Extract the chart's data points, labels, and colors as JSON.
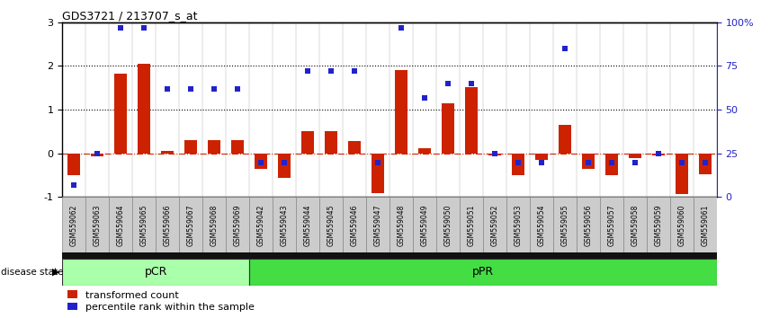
{
  "title": "GDS3721 / 213707_s_at",
  "samples": [
    "GSM559062",
    "GSM559063",
    "GSM559064",
    "GSM559065",
    "GSM559066",
    "GSM559067",
    "GSM559068",
    "GSM559069",
    "GSM559042",
    "GSM559043",
    "GSM559044",
    "GSM559045",
    "GSM559046",
    "GSM559047",
    "GSM559048",
    "GSM559049",
    "GSM559050",
    "GSM559051",
    "GSM559052",
    "GSM559053",
    "GSM559054",
    "GSM559055",
    "GSM559056",
    "GSM559057",
    "GSM559058",
    "GSM559059",
    "GSM559060",
    "GSM559061"
  ],
  "transformed_count": [
    -0.5,
    -0.07,
    1.82,
    2.05,
    0.06,
    0.3,
    0.3,
    0.3,
    -0.35,
    -0.55,
    0.5,
    0.5,
    0.28,
    -0.9,
    1.9,
    0.12,
    1.15,
    1.52,
    -0.05,
    -0.5,
    -0.14,
    0.65,
    -0.35,
    -0.5,
    -0.1,
    -0.05,
    -0.92,
    -0.47
  ],
  "percentile_rank": [
    7,
    25,
    97,
    97,
    62,
    62,
    62,
    62,
    20,
    20,
    72,
    72,
    72,
    20,
    97,
    57,
    65,
    65,
    25,
    20,
    20,
    85,
    20,
    20,
    20,
    25,
    20,
    20
  ],
  "pCR_count": 8,
  "pPR_count": 20,
  "pCR_label": "pCR",
  "pPR_label": "pPR",
  "bar_color": "#CC2200",
  "dot_color": "#2222CC",
  "ylim_left": [
    -1,
    3
  ],
  "ylim_right": [
    0,
    100
  ],
  "yticks_left": [
    -1,
    0,
    1,
    2,
    3
  ],
  "yticks_right": [
    0,
    25,
    50,
    75,
    100
  ],
  "ytick_right_labels": [
    "0",
    "25",
    "50",
    "75",
    "100%"
  ],
  "hline_y": [
    1,
    2
  ],
  "hline_color": "black",
  "zero_line_color": "#CC2200",
  "pCR_color": "#AAFFAA",
  "pPR_color": "#44DD44",
  "legend_red_label": "transformed count",
  "legend_blue_label": "percentile rank within the sample",
  "disease_state_label": "disease state",
  "bar_width": 0.55,
  "xtick_bg": "#CCCCCC",
  "xtick_border": "#888888"
}
